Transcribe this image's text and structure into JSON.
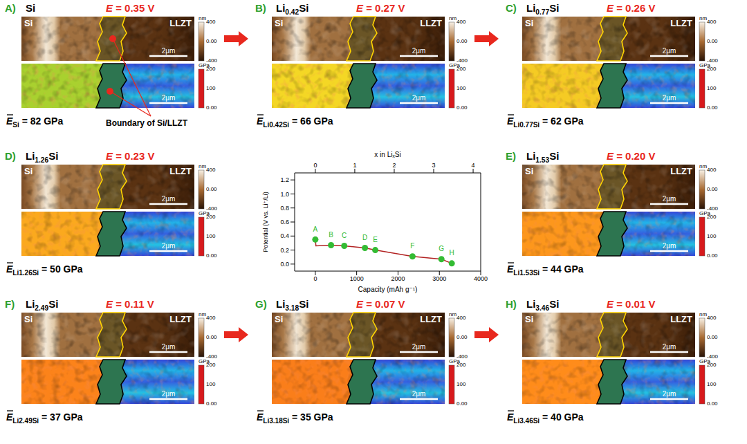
{
  "figure": {
    "left_label": "Si",
    "right_label": "LLZT",
    "scale_bar": "2μm",
    "modulus_symbol": "E",
    "topography_colorbar": {
      "unit": "nm",
      "range": [
        -400,
        400
      ],
      "ticks": [
        400,
        {
          "value": 0,
          "label": "0.00"
        },
        -400
      ]
    },
    "modulus_colorbar": {
      "unit": "GPa",
      "range": [
        0,
        200
      ],
      "ticks": [
        200,
        100,
        {
          "value": 0,
          "label": "0.00"
        }
      ]
    },
    "panels": [
      {
        "letter": "A)",
        "composition": "Si",
        "potential_label": "E = 0.35 V",
        "mean_modulus": {
          "subscript": "Si",
          "value": 82,
          "text": "= 82 GPa"
        },
        "annotation": "Boundary of Si/LLZT"
      },
      {
        "letter": "B)",
        "composition": "Li0.42Si",
        "potential_label": "E = 0.27 V",
        "mean_modulus": {
          "subscript": "Li0.42Si",
          "value": 66,
          "text": "= 66 GPa"
        }
      },
      {
        "letter": "C)",
        "composition": "Li0.77Si",
        "potential_label": "E = 0.26 V",
        "mean_modulus": {
          "subscript": "Li0.77Si",
          "value": 62,
          "text": "= 62 GPa"
        }
      },
      {
        "letter": "D)",
        "composition": "Li1.26Si",
        "potential_label": "E = 0.23 V",
        "mean_modulus": {
          "subscript": "Li1.26Si",
          "value": 50,
          "text": "= 50 GPa"
        }
      },
      {
        "letter": "E)",
        "composition": "Li1.53Si",
        "potential_label": "E = 0.20 V",
        "mean_modulus": {
          "subscript": "Li1.53Si",
          "value": 44,
          "text": "= 44 GPa"
        }
      },
      {
        "letter": "F)",
        "composition": "Li2.49Si",
        "potential_label": "E = 0.11 V",
        "mean_modulus": {
          "subscript": "Li2.49Si",
          "value": 37,
          "text": "= 37 GPa"
        }
      },
      {
        "letter": "G)",
        "composition": "Li3.18Si",
        "potential_label": "E = 0.07 V",
        "mean_modulus": {
          "subscript": "Li3.18Si",
          "value": 35,
          "text": "= 35 GPa"
        }
      },
      {
        "letter": "H)",
        "composition": "Li3.46Si",
        "potential_label": "E = 0.01 V",
        "mean_modulus": {
          "subscript": "Li3.46Si",
          "value": 40,
          "text": "= 40 GPa"
        }
      }
    ]
  },
  "chart_data": {
    "type": "line",
    "xlabel": "Capacity (mAh g⁻¹)",
    "ylabel": "Potential (V vs. Li⁺/Li)",
    "x2label": "x in LiₓSi",
    "xlim": [
      -500,
      4000
    ],
    "xticks": [
      0,
      1000,
      2000,
      3000,
      4000
    ],
    "ylim": [
      -0.1,
      1.3
    ],
    "yticks": [
      {
        "value": 0,
        "label": "0.0"
      },
      0.2,
      0.4,
      0.6,
      0.8,
      {
        "value": 1,
        "label": "1.0"
      },
      1.2
    ],
    "x2lim": [
      -0.524,
      4.192
    ],
    "x2ticks": [
      0,
      1,
      2,
      3,
      4
    ],
    "series": [
      {
        "type": "line",
        "color": "#b22222",
        "x": [
          0,
          15,
          380,
          700,
          1200,
          1450,
          2350,
          3050,
          3300
        ],
        "values": [
          0.35,
          0.26,
          0.27,
          0.26,
          0.23,
          0.2,
          0.11,
          0.07,
          0.01
        ]
      },
      {
        "type": "scatter",
        "color": "#33bb33",
        "x": [
          0,
          380,
          700,
          1200,
          1450,
          2350,
          3050,
          3300
        ],
        "values": [
          0.35,
          0.27,
          0.26,
          0.23,
          0.2,
          0.11,
          0.07,
          0.01
        ],
        "point_labels": [
          "A",
          "B",
          "C",
          "D",
          "E",
          "F",
          "G",
          "H"
        ]
      }
    ]
  }
}
